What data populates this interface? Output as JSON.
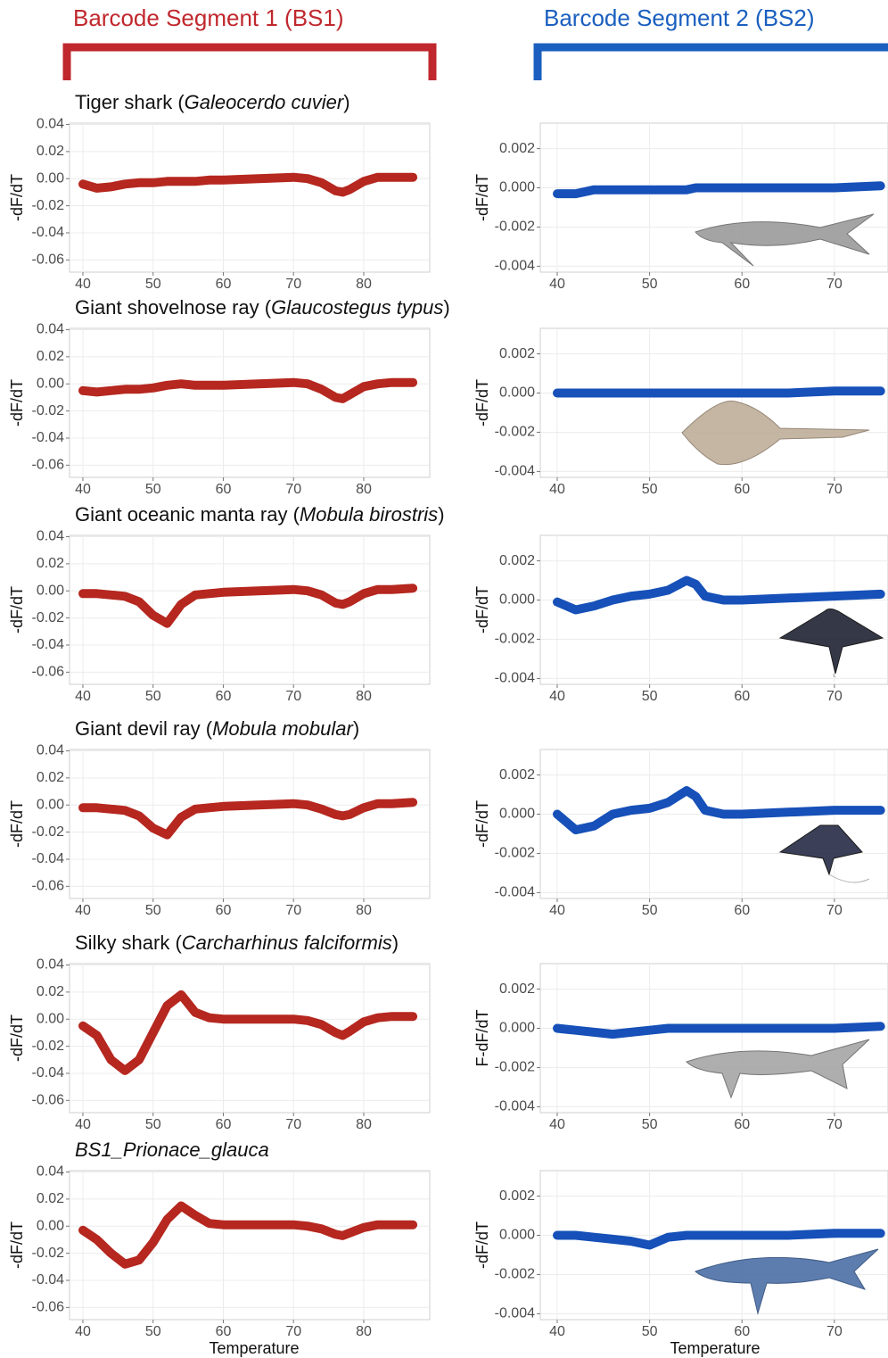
{
  "segments": [
    {
      "title": "Barcode Segment 1 (BS1)",
      "color": "#c0282d"
    },
    {
      "title": "Barcode Segment 2 (BS2)",
      "color": "#1a5fbf"
    }
  ],
  "chart_data": [
    {
      "type": "line",
      "title": [
        {
          "text": "Tiger shark ("
        },
        {
          "text": "Galeocerdo cuvier",
          "italic": true
        },
        {
          "text": ")"
        }
      ],
      "y_label": "-dF/dT",
      "color": "#b5271f",
      "x": [
        40,
        42,
        44,
        46,
        48,
        50,
        52,
        54,
        56,
        58,
        60,
        65,
        70,
        72,
        74,
        76,
        77,
        78,
        80,
        82,
        84,
        87
      ],
      "values": [
        -0.004,
        -0.007,
        -0.006,
        -0.004,
        -0.003,
        -0.003,
        -0.002,
        -0.002,
        -0.002,
        -0.001,
        -0.001,
        0.0,
        0.001,
        0.0,
        -0.003,
        -0.009,
        -0.01,
        -0.008,
        -0.002,
        0.001,
        0.001,
        0.001
      ],
      "xlim": [
        38.1,
        89.4
      ],
      "ylim": [
        -0.069,
        0.041
      ],
      "xticks": [
        40,
        50,
        60,
        70,
        80
      ],
      "yticks": [
        0.04,
        0.02,
        {
          "value": 0,
          "label": "0.00"
        },
        -0.02,
        -0.04,
        -0.06
      ],
      "grid": true
    },
    {
      "type": "line",
      "y_label": "-dF/dT",
      "color": "#1650b8",
      "x": [
        40,
        42,
        44,
        46,
        48,
        50,
        52,
        54,
        55,
        56,
        58,
        60,
        65,
        70,
        75
      ],
      "values": [
        -0.0003,
        -0.0003,
        -0.0001,
        -0.0001,
        -0.0001,
        -0.0001,
        -0.0001,
        -0.0001,
        0.0,
        0.0,
        0.0,
        0.0,
        0.0,
        0.0,
        0.0001
      ],
      "xlim": [
        38.17,
        75.8
      ],
      "ylim": [
        -0.0043,
        0.0033
      ],
      "xticks": [
        40,
        50,
        60,
        70
      ],
      "yticks": [
        0.002,
        {
          "value": 0,
          "label": "0.000"
        },
        -0.002,
        -0.004
      ],
      "grid": true
    },
    {
      "type": "line",
      "title": [
        {
          "text": "Giant shovelnose ray ("
        },
        {
          "text": "Glaucostegus typus",
          "italic": true
        },
        {
          "text": ")"
        }
      ],
      "y_label": "-dF/dT",
      "color": "#b5271f",
      "x": [
        40,
        42,
        44,
        46,
        48,
        50,
        52,
        54,
        56,
        58,
        60,
        65,
        70,
        72,
        74,
        76,
        77,
        78,
        80,
        82,
        84,
        87
      ],
      "values": [
        -0.005,
        -0.006,
        -0.005,
        -0.004,
        -0.004,
        -0.003,
        -0.001,
        0.0,
        -0.001,
        -0.001,
        -0.001,
        0.0,
        0.001,
        0.0,
        -0.004,
        -0.01,
        -0.011,
        -0.008,
        -0.002,
        0.0,
        0.001,
        0.001
      ],
      "xlim": [
        38.1,
        89.4
      ],
      "ylim": [
        -0.069,
        0.041
      ],
      "xticks": [
        40,
        50,
        60,
        70,
        80
      ],
      "yticks": [
        0.04,
        0.02,
        {
          "value": 0,
          "label": "0.00"
        },
        -0.02,
        -0.04,
        -0.06
      ],
      "grid": true
    },
    {
      "type": "line",
      "y_label": "-dF/dT",
      "color": "#1650b8",
      "x": [
        40,
        42,
        44,
        46,
        48,
        50,
        52,
        54,
        55,
        56,
        58,
        60,
        65,
        70,
        75
      ],
      "values": [
        0.0,
        0.0,
        0.0,
        0.0,
        0.0,
        0.0,
        0.0,
        0.0,
        0.0,
        0.0,
        0.0,
        0.0,
        0.0,
        0.0001,
        0.0001
      ],
      "xlim": [
        38.17,
        75.8
      ],
      "ylim": [
        -0.0043,
        0.0033
      ],
      "xticks": [
        40,
        50,
        60,
        70
      ],
      "yticks": [
        0.002,
        {
          "value": 0,
          "label": "0.000"
        },
        -0.002,
        -0.004
      ],
      "grid": true
    },
    {
      "type": "line",
      "title": [
        {
          "text": "Giant oceanic manta ray ("
        },
        {
          "text": "Mobula birostris",
          "italic": true
        },
        {
          "text": ")"
        }
      ],
      "y_label": "-dF/dT",
      "color": "#b5271f",
      "x": [
        40,
        42,
        44,
        46,
        48,
        50,
        52,
        54,
        56,
        58,
        60,
        65,
        70,
        72,
        74,
        76,
        77,
        78,
        80,
        82,
        84,
        87
      ],
      "values": [
        -0.002,
        -0.002,
        -0.003,
        -0.004,
        -0.008,
        -0.018,
        -0.024,
        -0.01,
        -0.003,
        -0.002,
        -0.001,
        0.0,
        0.001,
        0.0,
        -0.003,
        -0.009,
        -0.01,
        -0.008,
        -0.002,
        0.001,
        0.001,
        0.002
      ],
      "xlim": [
        38.1,
        89.4
      ],
      "ylim": [
        -0.069,
        0.041
      ],
      "xticks": [
        40,
        50,
        60,
        70,
        80
      ],
      "yticks": [
        0.04,
        0.02,
        {
          "value": 0,
          "label": "0.00"
        },
        -0.02,
        -0.04,
        -0.06
      ],
      "grid": true
    },
    {
      "type": "line",
      "y_label": "-dF/dT",
      "color": "#1650b8",
      "x": [
        40,
        42,
        44,
        46,
        48,
        50,
        52,
        54,
        55,
        56,
        58,
        60,
        65,
        70,
        75
      ],
      "values": [
        -0.0001,
        -0.0005,
        -0.0003,
        0.0,
        0.0002,
        0.0003,
        0.0005,
        0.001,
        0.0008,
        0.0002,
        0.0,
        0.0,
        0.0001,
        0.0002,
        0.0003
      ],
      "xlim": [
        38.17,
        75.8
      ],
      "ylim": [
        -0.0043,
        0.0033
      ],
      "xticks": [
        40,
        50,
        60,
        70
      ],
      "yticks": [
        0.002,
        {
          "value": 0,
          "label": "0.000"
        },
        -0.002,
        -0.004
      ],
      "grid": true
    },
    {
      "type": "line",
      "title": [
        {
          "text": "Giant devil ray ("
        },
        {
          "text": "Mobula mobular",
          "italic": true
        },
        {
          "text": ")"
        }
      ],
      "y_label": "-dF/dT",
      "color": "#b5271f",
      "x": [
        40,
        42,
        44,
        46,
        48,
        50,
        52,
        54,
        56,
        58,
        60,
        65,
        70,
        72,
        74,
        76,
        77,
        78,
        80,
        82,
        84,
        87
      ],
      "values": [
        -0.002,
        -0.002,
        -0.003,
        -0.004,
        -0.008,
        -0.017,
        -0.022,
        -0.009,
        -0.003,
        -0.002,
        -0.001,
        0.0,
        0.001,
        0.0,
        -0.003,
        -0.007,
        -0.008,
        -0.007,
        -0.002,
        0.001,
        0.001,
        0.002
      ],
      "xlim": [
        38.1,
        89.4
      ],
      "ylim": [
        -0.069,
        0.041
      ],
      "xticks": [
        40,
        50,
        60,
        70,
        80
      ],
      "yticks": [
        0.04,
        0.02,
        {
          "value": 0,
          "label": "0.00"
        },
        -0.02,
        -0.04,
        -0.06
      ],
      "grid": true
    },
    {
      "type": "line",
      "y_label": "-dF/dT",
      "color": "#1650b8",
      "x": [
        40,
        42,
        44,
        46,
        48,
        50,
        52,
        54,
        55,
        56,
        58,
        60,
        65,
        70,
        75
      ],
      "values": [
        0.0,
        -0.0008,
        -0.0006,
        0.0,
        0.0002,
        0.0003,
        0.0006,
        0.0012,
        0.0009,
        0.0002,
        0.0,
        0.0,
        0.0001,
        0.0002,
        0.0002
      ],
      "xlim": [
        38.17,
        75.8
      ],
      "ylim": [
        -0.0043,
        0.0033
      ],
      "xticks": [
        40,
        50,
        60,
        70
      ],
      "yticks": [
        0.002,
        {
          "value": 0,
          "label": "0.000"
        },
        -0.002,
        -0.004
      ],
      "grid": true
    },
    {
      "type": "line",
      "title": [
        {
          "text": "Silky shark ("
        },
        {
          "text": "Carcharhinus falciformis",
          "italic": true
        },
        {
          "text": ")"
        }
      ],
      "y_label": "-dF/dT",
      "color": "#b5271f",
      "x": [
        40,
        42,
        44,
        46,
        48,
        50,
        52,
        54,
        56,
        58,
        60,
        65,
        70,
        72,
        74,
        76,
        77,
        78,
        80,
        82,
        84,
        87
      ],
      "values": [
        -0.005,
        -0.012,
        -0.03,
        -0.038,
        -0.03,
        -0.01,
        0.01,
        0.018,
        0.005,
        0.001,
        0.0,
        0.0,
        0.0,
        -0.001,
        -0.004,
        -0.01,
        -0.012,
        -0.009,
        -0.002,
        0.001,
        0.002,
        0.002
      ],
      "xlim": [
        38.1,
        89.4
      ],
      "ylim": [
        -0.069,
        0.041
      ],
      "xticks": [
        40,
        50,
        60,
        70,
        80
      ],
      "yticks": [
        0.04,
        0.02,
        {
          "value": 0,
          "label": "0.00"
        },
        -0.02,
        -0.04,
        -0.06
      ],
      "grid": true
    },
    {
      "type": "line",
      "y_label": "F-dF/dT",
      "color": "#1650b8",
      "x": [
        40,
        42,
        44,
        46,
        48,
        50,
        52,
        54,
        55,
        56,
        58,
        60,
        65,
        70,
        75
      ],
      "values": [
        0.0,
        -0.0001,
        -0.0002,
        -0.0003,
        -0.0002,
        -0.0001,
        0.0,
        0.0,
        0.0,
        0.0,
        0.0,
        0.0,
        0.0,
        0.0,
        0.0001
      ],
      "xlim": [
        38.17,
        75.8
      ],
      "ylim": [
        -0.0043,
        0.0033
      ],
      "xticks": [
        40,
        50,
        60,
        70
      ],
      "yticks": [
        0.002,
        {
          "value": 0,
          "label": "0.000"
        },
        -0.002,
        -0.004
      ],
      "grid": true
    },
    {
      "type": "line",
      "title": [
        {
          "text": "BS1_Prionace_glauca",
          "italic": true
        }
      ],
      "y_label": "-dF/dT",
      "x_label": "Temperature",
      "color": "#b5271f",
      "x": [
        40,
        42,
        44,
        46,
        48,
        50,
        52,
        54,
        56,
        58,
        60,
        65,
        70,
        72,
        74,
        76,
        77,
        78,
        80,
        82,
        84,
        87
      ],
      "values": [
        -0.003,
        -0.01,
        -0.02,
        -0.028,
        -0.025,
        -0.012,
        0.005,
        0.015,
        0.008,
        0.002,
        0.001,
        0.001,
        0.001,
        0.0,
        -0.002,
        -0.006,
        -0.007,
        -0.005,
        -0.001,
        0.001,
        0.001,
        0.001
      ],
      "xlim": [
        38.1,
        89.4
      ],
      "ylim": [
        -0.069,
        0.041
      ],
      "xticks": [
        40,
        50,
        60,
        70,
        80
      ],
      "yticks": [
        0.04,
        0.02,
        {
          "value": 0,
          "label": "0.00"
        },
        -0.02,
        -0.04,
        -0.06
      ],
      "grid": true
    },
    {
      "type": "line",
      "y_label": "-dF/dT",
      "x_label": "Temperature",
      "color": "#1650b8",
      "x": [
        40,
        42,
        44,
        46,
        48,
        50,
        52,
        54,
        55,
        56,
        58,
        60,
        65,
        70,
        75
      ],
      "values": [
        0.0,
        0.0,
        -0.0001,
        -0.0002,
        -0.0003,
        -0.0005,
        -0.0001,
        0.0,
        0.0,
        0.0,
        0.0,
        0.0,
        0.0,
        0.0001,
        0.0001
      ],
      "xlim": [
        38.17,
        75.8
      ],
      "ylim": [
        -0.0043,
        0.0033
      ],
      "xticks": [
        40,
        50,
        60,
        70
      ],
      "yticks": [
        0.002,
        {
          "value": 0,
          "label": "0.000"
        },
        -0.002,
        -0.004
      ],
      "grid": true
    }
  ]
}
